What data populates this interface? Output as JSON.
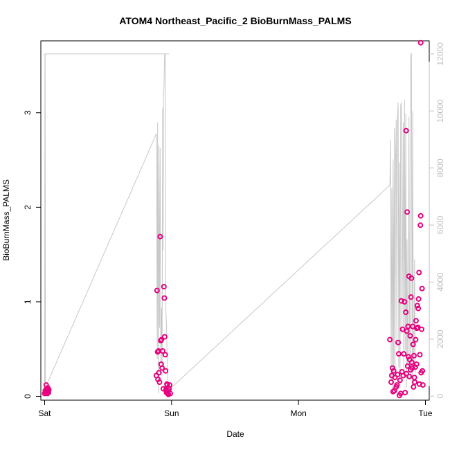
{
  "chart_data": {
    "type": "scatter",
    "title": "ATOM4 Northeast_Pacific_2 BioBurnMass_PALMS",
    "xlabel": "Date",
    "ylabel": "BioBurnMass_PALMS",
    "x_tick_labels": [
      "Sat",
      "Sun",
      "Mon",
      "Tue"
    ],
    "x_tick_values": [
      0,
      1,
      2,
      3
    ],
    "xlim": [
      -0.03,
      3.03
    ],
    "ylim": [
      -0.04,
      3.76
    ],
    "y_ticks": [
      0,
      1,
      2,
      3
    ],
    "y2lim": [
      -140,
      12460
    ],
    "y2_ticks": [
      0,
      2000,
      4000,
      6000,
      8000,
      10000,
      12000
    ],
    "grid": false,
    "series": [
      {
        "kind": "points",
        "color": "#e6007e",
        "points": [
          [
            0.0,
            0.03
          ],
          [
            0.005,
            0.06
          ],
          [
            0.01,
            0.04
          ],
          [
            0.012,
            0.12
          ],
          [
            0.015,
            0.08
          ],
          [
            0.018,
            0.05
          ],
          [
            0.02,
            0.07
          ],
          [
            0.022,
            0.03
          ],
          [
            0.025,
            0.09
          ],
          [
            0.028,
            0.05
          ],
          [
            0.03,
            0.04
          ],
          [
            0.033,
            0.07
          ],
          [
            0.88,
            0.22
          ],
          [
            0.885,
            1.12
          ],
          [
            0.89,
            0.47
          ],
          [
            0.893,
            0.18
          ],
          [
            0.897,
            0.48
          ],
          [
            0.9,
            0.25
          ],
          [
            0.905,
            0.15
          ],
          [
            0.91,
            1.69
          ],
          [
            0.915,
            0.59
          ],
          [
            0.918,
            0.34
          ],
          [
            0.92,
            0.6
          ],
          [
            0.925,
            0.3
          ],
          [
            0.93,
            0.48
          ],
          [
            0.935,
            0.08
          ],
          [
            0.94,
            1.16
          ],
          [
            0.943,
            1.04
          ],
          [
            0.946,
            0.63
          ],
          [
            0.95,
            0.44
          ],
          [
            0.953,
            0.27
          ],
          [
            0.956,
            0.07
          ],
          [
            0.96,
            0.04
          ],
          [
            0.963,
            0.13
          ],
          [
            0.966,
            0.12
          ],
          [
            0.97,
            0.03
          ],
          [
            0.973,
            0.06
          ],
          [
            0.976,
            0.02
          ],
          [
            0.98,
            0.08
          ],
          [
            0.985,
            0.12
          ],
          [
            0.99,
            0.03
          ],
          [
            2.72,
            0.6
          ],
          [
            2.73,
            0.15
          ],
          [
            2.735,
            0.22
          ],
          [
            2.74,
            0.3
          ],
          [
            2.745,
            0.05
          ],
          [
            2.75,
            0.27
          ],
          [
            2.755,
            0.06
          ],
          [
            2.76,
            0.2
          ],
          [
            2.77,
            0.1
          ],
          [
            2.775,
            0.12
          ],
          [
            2.78,
            0.23
          ],
          [
            2.785,
            0.57
          ],
          [
            2.79,
            0.45
          ],
          [
            2.795,
            0.01
          ],
          [
            2.8,
            0.17
          ],
          [
            2.805,
            0.03
          ],
          [
            2.81,
            1.01
          ],
          [
            2.815,
            0.26
          ],
          [
            2.82,
            0.71
          ],
          [
            2.825,
            0.22
          ],
          [
            2.83,
            0.45
          ],
          [
            2.835,
            1.0
          ],
          [
            2.84,
            0.04
          ],
          [
            2.845,
            0.89
          ],
          [
            2.848,
            2.81
          ],
          [
            2.85,
            0.24
          ],
          [
            2.853,
            0.69
          ],
          [
            2.856,
            1.95
          ],
          [
            2.86,
            0.32
          ],
          [
            2.863,
            0.74
          ],
          [
            2.866,
            0.42
          ],
          [
            2.87,
            1.27
          ],
          [
            2.873,
            0.21
          ],
          [
            2.876,
            0.39
          ],
          [
            2.88,
            0.64
          ],
          [
            2.883,
            0.28
          ],
          [
            2.886,
            1.05
          ],
          [
            2.89,
            1.25
          ],
          [
            2.893,
            0.36
          ],
          [
            2.896,
            0.3
          ],
          [
            2.9,
            0.74
          ],
          [
            2.903,
            0.55
          ],
          [
            2.906,
            0.1
          ],
          [
            2.91,
            0.43
          ],
          [
            2.913,
            0.2
          ],
          [
            2.916,
            0.15
          ],
          [
            2.92,
            0.31
          ],
          [
            2.923,
            0.6
          ],
          [
            2.926,
            0.8
          ],
          [
            2.93,
            0.34
          ],
          [
            2.933,
            0.72
          ],
          [
            2.936,
            0.96
          ],
          [
            2.94,
            0.73
          ],
          [
            2.943,
            0.93
          ],
          [
            2.946,
            1.03
          ],
          [
            2.95,
            1.31
          ],
          [
            2.953,
            0.13
          ],
          [
            2.956,
            0.44
          ],
          [
            2.96,
            1.81
          ],
          [
            2.963,
            1.91
          ],
          [
            2.966,
            0.25
          ],
          [
            2.97,
            0.71
          ],
          [
            2.973,
            1.14
          ],
          [
            2.976,
            0.27
          ],
          [
            2.98,
            0.12
          ],
          [
            2.963,
            3.74
          ]
        ]
      },
      {
        "kind": "line",
        "axis": "right",
        "color": "#c8c8c8",
        "points": [
          [
            0.0,
            0.0
          ],
          [
            0.002,
            12000
          ],
          [
            0.98,
            12000
          ],
          [
            0.004,
            12000
          ],
          [
            0.006,
            300
          ],
          [
            0.88,
            9200
          ],
          [
            0.883,
            7400
          ],
          [
            0.887,
            1300
          ],
          [
            0.89,
            9600
          ],
          [
            0.895,
            100
          ],
          [
            0.9,
            8800
          ],
          [
            0.905,
            2400
          ],
          [
            0.91,
            8700
          ],
          [
            0.915,
            1200
          ],
          [
            0.92,
            3100
          ],
          [
            0.925,
            700
          ],
          [
            0.93,
            10100
          ],
          [
            0.933,
            5100
          ],
          [
            0.936,
            10500
          ],
          [
            0.94,
            10800
          ],
          [
            0.945,
            12000
          ],
          [
            0.95,
            12000
          ],
          [
            0.955,
            3000
          ],
          [
            0.96,
            2500
          ],
          [
            0.965,
            1400
          ],
          [
            0.97,
            600
          ],
          [
            0.975,
            200
          ],
          [
            2.72,
            7400
          ],
          [
            2.725,
            9000
          ],
          [
            2.73,
            600
          ],
          [
            2.735,
            7300
          ],
          [
            2.74,
            200
          ],
          [
            2.745,
            8300
          ],
          [
            2.75,
            800
          ],
          [
            2.755,
            9400
          ],
          [
            2.76,
            300
          ],
          [
            2.765,
            8300
          ],
          [
            2.77,
            9700
          ],
          [
            2.775,
            1700
          ],
          [
            2.78,
            9800
          ],
          [
            2.785,
            10300
          ],
          [
            2.79,
            1000
          ],
          [
            2.795,
            8200
          ],
          [
            2.8,
            300
          ],
          [
            2.805,
            10200
          ],
          [
            2.81,
            10300
          ],
          [
            2.815,
            2200
          ],
          [
            2.82,
            5500
          ],
          [
            2.825,
            9600
          ],
          [
            2.83,
            700
          ],
          [
            2.835,
            10400
          ],
          [
            2.84,
            1600
          ],
          [
            2.845,
            9900
          ],
          [
            2.85,
            300
          ],
          [
            2.855,
            5500
          ],
          [
            2.86,
            1200
          ],
          [
            2.865,
            600
          ],
          [
            2.87,
            9800
          ],
          [
            2.875,
            2500
          ],
          [
            2.88,
            600
          ],
          [
            2.885,
            12000
          ],
          [
            2.89,
            12000
          ],
          [
            2.895,
            300
          ],
          [
            2.9,
            10000
          ],
          [
            2.905,
            900
          ],
          [
            2.91,
            1600
          ],
          [
            2.915,
            4800
          ],
          [
            2.92,
            800
          ]
        ]
      }
    ]
  }
}
